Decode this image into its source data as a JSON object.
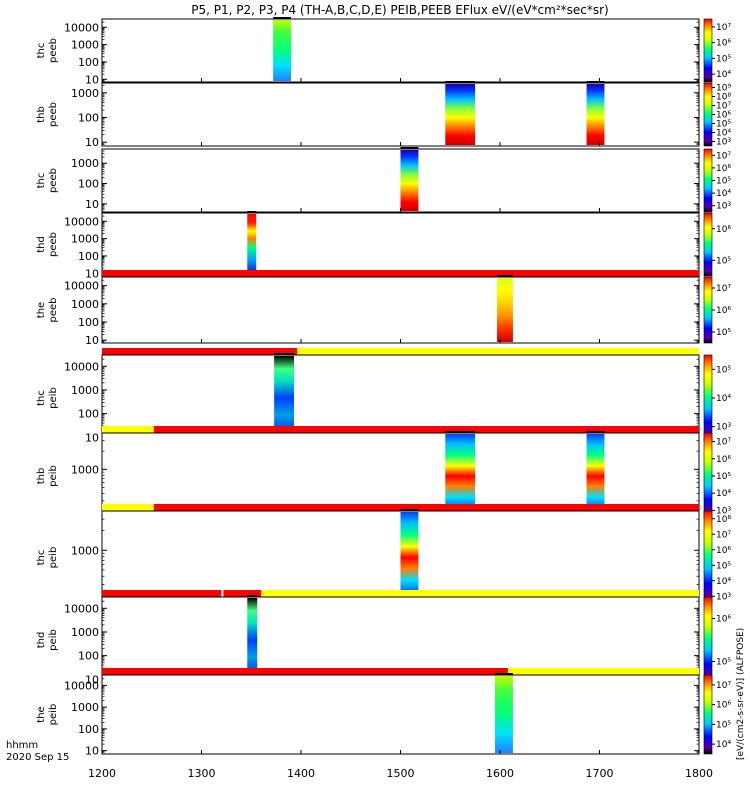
{
  "title": "P5, P1, P2, P3, P4 (TH-A,B,C,D,E) PEIB,PEEB EFlux eV/(eV*cm²*sec*sr)",
  "time_axis": {
    "label": "hhmm",
    "date": "2020 Sep 15",
    "range": [
      1200,
      1800
    ],
    "ticks": [
      "1200",
      "1300",
      "1400",
      "1500",
      "1600",
      "1700",
      "1800"
    ]
  },
  "colorbar_axis_title": "[eV/(cm2-s-sr-eV)] (ALFPOSE)",
  "chart_data": [
    {
      "type": "heatmap",
      "probe": "thc",
      "species": "peeb",
      "ylabel": [
        "thc",
        "peeb"
      ],
      "ylog": true,
      "yticks": [
        "10",
        "100",
        "1000",
        "10000"
      ],
      "ylim": [
        7,
        30000
      ],
      "flags": [],
      "intervals": [
        {
          "start": 1372,
          "end": 1390,
          "colormap": "mid"
        }
      ],
      "colorbar": [
        "10⁴",
        "10⁵",
        "10⁶",
        "10⁷"
      ]
    },
    {
      "type": "heatmap",
      "probe": "thb",
      "species": "peeb",
      "ylabel": [
        "thb",
        "peeb"
      ],
      "ylog": true,
      "yticks": [
        "10",
        "100",
        "1000"
      ],
      "ylim": [
        7,
        2500
      ],
      "flags": [],
      "intervals": [
        {
          "start": 1545,
          "end": 1575,
          "colormap": "low_high"
        },
        {
          "start": 1687,
          "end": 1705,
          "colormap": "low_high"
        }
      ],
      "colorbar": [
        "10³",
        "10⁴",
        "10⁵",
        "10⁶",
        "10⁷",
        "10⁸",
        "10⁹"
      ]
    },
    {
      "type": "heatmap",
      "probe": "thc",
      "species": "peeb",
      "ylabel": [
        "thc",
        "peeb"
      ],
      "ylog": true,
      "yticks": [
        "10",
        "100",
        "1000"
      ],
      "ylim": [
        4,
        5000
      ],
      "flags": [],
      "intervals": [
        {
          "start": 1500,
          "end": 1518,
          "colormap": "low_high"
        }
      ],
      "colorbar": [
        "10³",
        "10⁴",
        "10⁵",
        "10⁶",
        "10⁷"
      ]
    },
    {
      "type": "heatmap",
      "probe": "thd",
      "species": "peeb",
      "ylabel": [
        "thd",
        "peeb"
      ],
      "ylog": true,
      "yticks": [
        "10",
        "100",
        "1000",
        "10000"
      ],
      "ylim": [
        7,
        30000
      ],
      "flags": [],
      "intervals": [
        {
          "start": 1346,
          "end": 1355,
          "colormap": "mixed"
        }
      ],
      "colorbar": [
        "10⁵",
        "10⁶"
      ]
    },
    {
      "type": "heatmap",
      "probe": "the",
      "species": "peeb",
      "ylabel": [
        "the",
        "peeb"
      ],
      "ylog": true,
      "yticks": [
        "10",
        "100",
        "1000",
        "10000"
      ],
      "ylim": [
        7,
        30000
      ],
      "flags": [
        {
          "start": 1200,
          "end": 1800,
          "color": "red"
        }
      ],
      "intervals": [
        {
          "start": 1597,
          "end": 1613,
          "colormap": "high_low"
        }
      ],
      "colorbar": [
        "10⁵",
        "10⁶",
        "10⁷"
      ]
    },
    {
      "type": "heatmap",
      "probe": "thc",
      "species": "peib",
      "ylabel": [
        "thc",
        "peib"
      ],
      "ylog": true,
      "yticks": [
        "10",
        "100",
        "1000",
        "10000"
      ],
      "ylim": [
        7,
        30000
      ],
      "flags": [
        {
          "start": 1200,
          "end": 1396,
          "color": "red"
        },
        {
          "start": 1396,
          "end": 1800,
          "color": "yellow"
        }
      ],
      "intervals": [
        {
          "start": 1373,
          "end": 1393,
          "colormap": "noisy"
        }
      ],
      "colorbar": [
        "10³",
        "10⁴",
        "10⁵"
      ]
    },
    {
      "type": "heatmap",
      "probe": "thb",
      "species": "peib",
      "ylabel": [
        "thb",
        "peib"
      ],
      "ylog": true,
      "yticks": [
        "1000"
      ],
      "ylim": [
        150,
        4000
      ],
      "flags": [
        {
          "start": 1200,
          "end": 1252,
          "color": "yellow"
        },
        {
          "start": 1252,
          "end": 1800,
          "color": "red"
        }
      ],
      "intervals": [
        {
          "start": 1545,
          "end": 1575,
          "colormap": "banded"
        },
        {
          "start": 1687,
          "end": 1705,
          "colormap": "banded"
        }
      ],
      "colorbar": [
        "10³",
        "10⁴",
        "10⁵",
        "10⁶",
        "10⁷"
      ]
    },
    {
      "type": "heatmap",
      "probe": "thc",
      "species": "peib",
      "ylabel": [
        "thc",
        "peib"
      ],
      "ylog": true,
      "yticks": [
        "1000"
      ],
      "ylim": [
        150,
        4000
      ],
      "flags": [
        {
          "start": 1200,
          "end": 1252,
          "color": "yellow"
        },
        {
          "start": 1252,
          "end": 1800,
          "color": "red"
        }
      ],
      "intervals": [
        {
          "start": 1500,
          "end": 1518,
          "colormap": "banded"
        }
      ],
      "colorbar": [
        "10³",
        "10⁴",
        "10⁵",
        "10⁶",
        "10⁷",
        "10⁸"
      ]
    },
    {
      "type": "heatmap",
      "probe": "thd",
      "species": "peib",
      "ylabel": [
        "thd",
        "peib"
      ],
      "ylog": true,
      "yticks": [
        "10",
        "100",
        "1000",
        "10000"
      ],
      "ylim": [
        7,
        30000
      ],
      "flags": [
        {
          "start": 1200,
          "end": 1320,
          "color": "red"
        },
        {
          "start": 1322,
          "end": 1360,
          "color": "red"
        },
        {
          "start": 1360,
          "end": 1800,
          "color": "yellow"
        }
      ],
      "intervals": [
        {
          "start": 1346,
          "end": 1356,
          "colormap": "noisy"
        }
      ],
      "colorbar": [
        "10⁵",
        "10⁶"
      ]
    },
    {
      "type": "heatmap",
      "probe": "the",
      "species": "peib",
      "ylabel": [
        "the",
        "peib"
      ],
      "ylog": true,
      "yticks": [
        "10",
        "100",
        "1000",
        "10000"
      ],
      "ylim": [
        7,
        30000
      ],
      "flags": [
        {
          "start": 1200,
          "end": 1608,
          "color": "red"
        },
        {
          "start": 1608,
          "end": 1800,
          "color": "yellow"
        }
      ],
      "intervals": [
        {
          "start": 1595,
          "end": 1613,
          "colormap": "mid"
        }
      ],
      "colorbar": [
        "10⁴",
        "10⁵",
        "10⁶",
        "10⁷"
      ]
    }
  ],
  "colors": {
    "flag_red": "#ff0000",
    "flag_yellow": "#ffff00"
  }
}
